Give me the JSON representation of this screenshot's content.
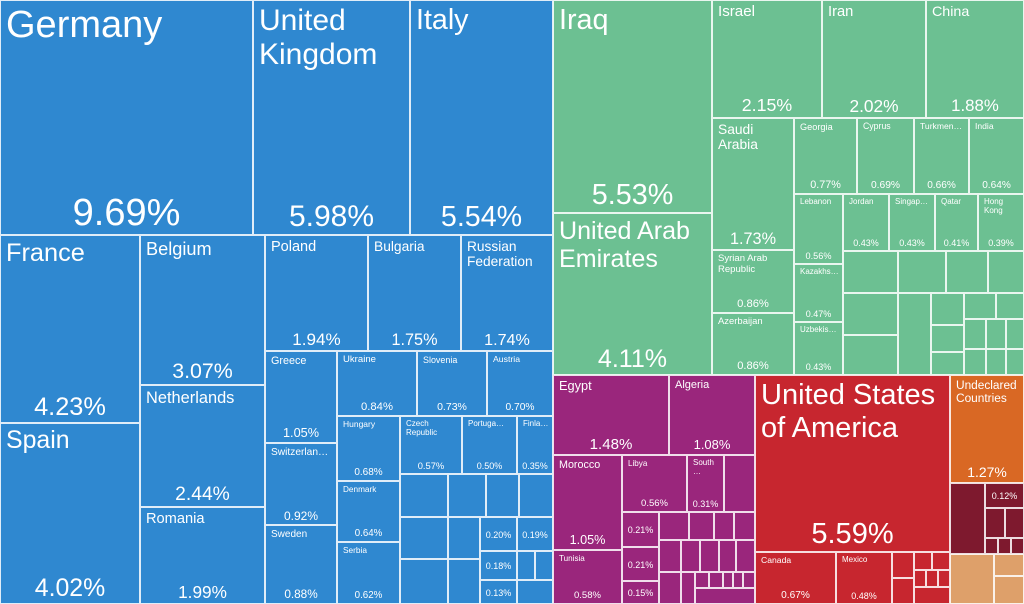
{
  "chart_data": {
    "type": "treemap",
    "unit": "%",
    "region_colors": {
      "europe": "#2f88d0",
      "asia": "#6cc092",
      "africa": "#9a267c",
      "north_america": "#c7262f",
      "undeclared": "#d96824",
      "oceania": "#7e192e",
      "south_america": "#dea06a"
    },
    "items": [
      {
        "name": "Germany",
        "value": 9.69,
        "label": "9.69%",
        "region": "europe"
      },
      {
        "name": "United Kingdom",
        "value": 5.98,
        "label": "5.98%",
        "region": "europe"
      },
      {
        "name": "Italy",
        "value": 5.54,
        "label": "5.54%",
        "region": "europe"
      },
      {
        "name": "France",
        "value": 4.23,
        "label": "4.23%",
        "region": "europe"
      },
      {
        "name": "Spain",
        "value": 4.02,
        "label": "4.02%",
        "region": "europe"
      },
      {
        "name": "Belgium",
        "value": 3.07,
        "label": "3.07%",
        "region": "europe"
      },
      {
        "name": "Netherlands",
        "value": 2.44,
        "label": "2.44%",
        "region": "europe"
      },
      {
        "name": "Romania",
        "value": 1.99,
        "label": "1.99%",
        "region": "europe"
      },
      {
        "name": "Poland",
        "value": 1.94,
        "label": "1.94%",
        "region": "europe"
      },
      {
        "name": "Bulgaria",
        "value": 1.75,
        "label": "1.75%",
        "region": "europe"
      },
      {
        "name": "Russian Federation",
        "value": 1.74,
        "label": "1.74%",
        "region": "europe"
      },
      {
        "name": "Greece",
        "value": 1.05,
        "label": "1.05%",
        "region": "europe"
      },
      {
        "name": "Switzerlan…",
        "value": 0.92,
        "label": "0.92%",
        "region": "europe"
      },
      {
        "name": "Sweden",
        "value": 0.88,
        "label": "0.88%",
        "region": "europe"
      },
      {
        "name": "Ukraine",
        "value": 0.84,
        "label": "0.84%",
        "region": "europe"
      },
      {
        "name": "Slovenia",
        "value": 0.73,
        "label": "0.73%",
        "region": "europe"
      },
      {
        "name": "Austria",
        "value": 0.7,
        "label": "0.70%",
        "region": "europe"
      },
      {
        "name": "Hungary",
        "value": 0.68,
        "label": "0.68%",
        "region": "europe"
      },
      {
        "name": "Denmark",
        "value": 0.64,
        "label": "0.64%",
        "region": "europe"
      },
      {
        "name": "Serbia",
        "value": 0.62,
        "label": "0.62%",
        "region": "europe"
      },
      {
        "name": "Czech Republic",
        "value": 0.57,
        "label": "0.57%",
        "region": "europe"
      },
      {
        "name": "Portuga…",
        "value": 0.5,
        "label": "0.50%",
        "region": "europe"
      },
      {
        "name": "Finla…",
        "value": 0.35,
        "label": "0.35%",
        "region": "europe"
      },
      {
        "name": "",
        "value": 0.2,
        "label": "0.20%",
        "region": "europe"
      },
      {
        "name": "",
        "value": 0.19,
        "label": "0.19%",
        "region": "europe"
      },
      {
        "name": "",
        "value": 0.18,
        "label": "0.18%",
        "region": "europe"
      },
      {
        "name": "",
        "value": 0.13,
        "label": "0.13%",
        "region": "europe"
      },
      {
        "name": "Iraq",
        "value": 5.53,
        "label": "5.53%",
        "region": "asia"
      },
      {
        "name": "United Arab Emirates",
        "value": 4.11,
        "label": "4.11%",
        "region": "asia"
      },
      {
        "name": "Israel",
        "value": 2.15,
        "label": "2.15%",
        "region": "asia"
      },
      {
        "name": "Iran",
        "value": 2.02,
        "label": "2.02%",
        "region": "asia"
      },
      {
        "name": "China",
        "value": 1.88,
        "label": "1.88%",
        "region": "asia"
      },
      {
        "name": "Saudi Arabia",
        "value": 1.73,
        "label": "1.73%",
        "region": "asia"
      },
      {
        "name": "Syrian Arab Republic",
        "value": 0.86,
        "label": "0.86%",
        "region": "asia"
      },
      {
        "name": "Azerbaijan",
        "value": 0.86,
        "label": "0.86%",
        "region": "asia"
      },
      {
        "name": "Georgia",
        "value": 0.77,
        "label": "0.77%",
        "region": "asia"
      },
      {
        "name": "Cyprus",
        "value": 0.69,
        "label": "0.69%",
        "region": "asia"
      },
      {
        "name": "Turkmen…",
        "value": 0.66,
        "label": "0.66%",
        "region": "asia"
      },
      {
        "name": "India",
        "value": 0.64,
        "label": "0.64%",
        "region": "asia"
      },
      {
        "name": "Lebanon",
        "value": 0.56,
        "label": "0.56%",
        "region": "asia"
      },
      {
        "name": "Kazakhs…",
        "value": 0.47,
        "label": "0.47%",
        "region": "asia"
      },
      {
        "name": "Uzbekis…",
        "value": 0.43,
        "label": "0.43%",
        "region": "asia"
      },
      {
        "name": "Jordan",
        "value": 0.43,
        "label": "0.43%",
        "region": "asia"
      },
      {
        "name": "Singap…",
        "value": 0.43,
        "label": "0.43%",
        "region": "asia"
      },
      {
        "name": "Qatar",
        "value": 0.41,
        "label": "0.41%",
        "region": "asia"
      },
      {
        "name": "Hong Kong",
        "value": 0.39,
        "label": "0.39%",
        "region": "asia"
      },
      {
        "name": "Egypt",
        "value": 1.48,
        "label": "1.48%",
        "region": "africa"
      },
      {
        "name": "Algeria",
        "value": 1.08,
        "label": "1.08%",
        "region": "africa"
      },
      {
        "name": "Morocco",
        "value": 1.05,
        "label": "1.05%",
        "region": "africa"
      },
      {
        "name": "Tunisia",
        "value": 0.58,
        "label": "0.58%",
        "region": "africa"
      },
      {
        "name": "Libya",
        "value": 0.56,
        "label": "0.56%",
        "region": "africa"
      },
      {
        "name": "South…",
        "value": 0.31,
        "label": "0.31%",
        "region": "africa"
      },
      {
        "name": "",
        "value": 0.21,
        "label": "0.21%",
        "region": "africa"
      },
      {
        "name": "",
        "value": 0.21,
        "label": "0.21%",
        "region": "africa"
      },
      {
        "name": "",
        "value": 0.15,
        "label": "0.15%",
        "region": "africa"
      },
      {
        "name": "United States of America",
        "value": 5.59,
        "label": "5.59%",
        "region": "north_america"
      },
      {
        "name": "Canada",
        "value": 0.67,
        "label": "0.67%",
        "region": "north_america"
      },
      {
        "name": "Mexico",
        "value": 0.48,
        "label": "0.48%",
        "region": "north_america"
      },
      {
        "name": "Undeclared Countries",
        "value": 1.27,
        "label": "1.27%",
        "region": "undeclared"
      },
      {
        "name": "",
        "value": 0.12,
        "label": "0.12%",
        "region": "oceania"
      }
    ]
  }
}
